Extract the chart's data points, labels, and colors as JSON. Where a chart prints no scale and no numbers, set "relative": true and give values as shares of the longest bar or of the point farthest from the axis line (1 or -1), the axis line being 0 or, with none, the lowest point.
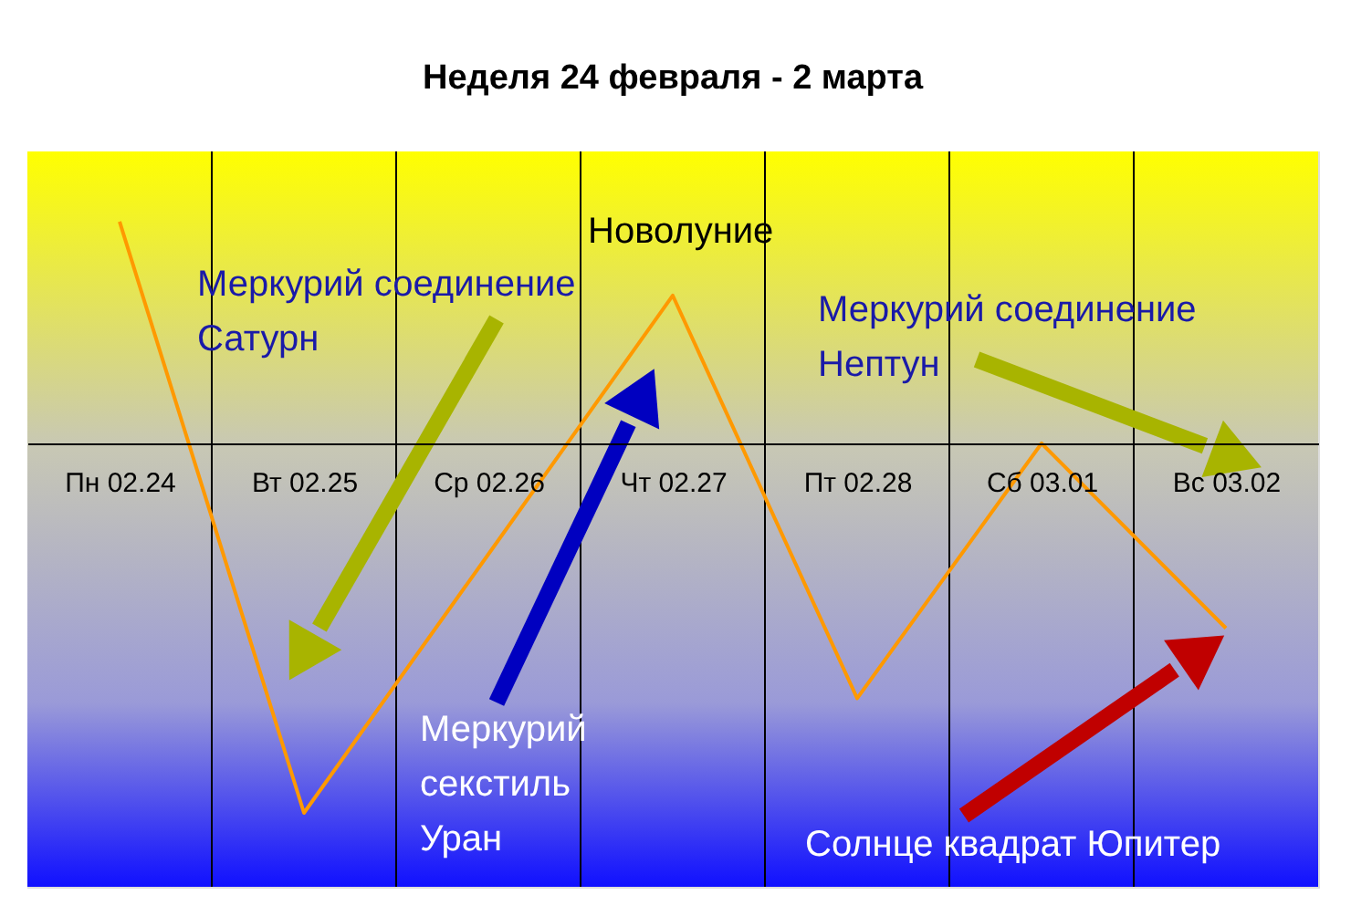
{
  "chart_data": {
    "type": "line",
    "title": "Неделя 24 февраля - 2 марта",
    "relative": true,
    "categories": [
      "Пн 02.24",
      "Вт 02.25",
      "Ср 02.26",
      "Чт 02.27",
      "Пт 02.28",
      "Сб 03.01",
      "Вс 03.02"
    ],
    "series": [
      {
        "color": "#ff9900",
        "values": [
          0.6,
          -1,
          -0.3,
          0.4,
          -0.69,
          0,
          -0.5
        ]
      }
    ],
    "grid": "x",
    "marker": "none",
    "line_style": "solid",
    "annotations": [
      "Новолуние",
      "Меркурий соединение\nСатурн",
      "Меркурий\nсекстиль\nУран",
      "Меркурий соединение\nНептун",
      "Солнце квадрат Юпитер"
    ]
  }
}
